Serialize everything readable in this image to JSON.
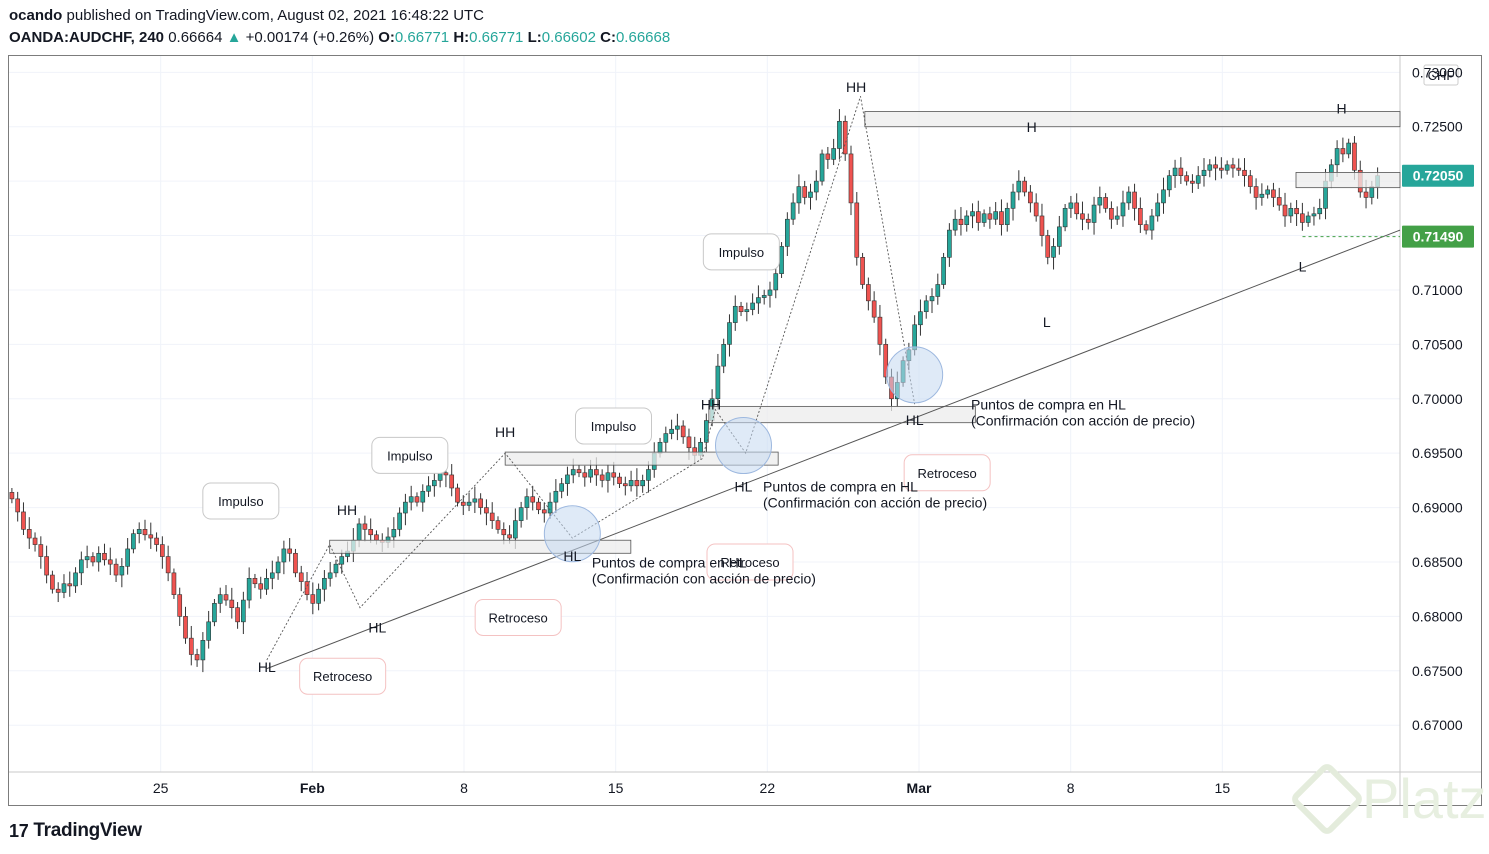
{
  "header": {
    "author": "ocando",
    "published": "published on TradingView.com, August 02, 2021 16:48:22 UTC",
    "symbol": "OANDA:AUDCHF, 240",
    "last": "0.66664",
    "change": "+0.00174 (+0.26%)",
    "o_label": "O:",
    "o": "0.66771",
    "h_label": "H:",
    "h": "0.66771",
    "l_label": "L:",
    "l": "0.66602",
    "c_label": "C:",
    "c": "0.66668"
  },
  "brand": {
    "logo_text": "TradingView",
    "watermark": "Platzi"
  },
  "colors": {
    "up": "#26a69a",
    "down": "#ef5350",
    "price_badge": "#26a69a",
    "level_badge": "#43a047",
    "zone_fill": "#ececec",
    "circle": "#c5d9f1"
  },
  "chart_data": {
    "type": "candlestick",
    "currency_label": "CHF",
    "ylim": [
      0.6657,
      0.7315
    ],
    "y_ticks": [
      "0.73000",
      "0.72500",
      "0.72000",
      "0.71500",
      "0.71000",
      "0.70500",
      "0.70000",
      "0.69500",
      "0.69000",
      "0.68500",
      "0.68000",
      "0.67500",
      "0.67000"
    ],
    "x_ticks": [
      {
        "label": "25",
        "day": -7
      },
      {
        "label": "Feb",
        "day": 0
      },
      {
        "label": "8",
        "day": 7
      },
      {
        "label": "15",
        "day": 14
      },
      {
        "label": "22",
        "day": 21
      },
      {
        "label": "Mar",
        "day": 28
      },
      {
        "label": "8",
        "day": 35
      },
      {
        "label": "15",
        "day": 42
      }
    ],
    "x_range_days": [
      -14,
      50.2
    ],
    "price_badges": [
      {
        "value": "0.72050",
        "kind": "price"
      },
      {
        "value": "0.71490",
        "kind": "level"
      }
    ],
    "closes": [
      0.6908,
      0.6896,
      0.688,
      0.6872,
      0.6866,
      0.6855,
      0.6838,
      0.6825,
      0.6822,
      0.683,
      0.6828,
      0.684,
      0.6852,
      0.6855,
      0.685,
      0.6858,
      0.6852,
      0.6848,
      0.6838,
      0.6846,
      0.6862,
      0.6876,
      0.688,
      0.6875,
      0.6872,
      0.6866,
      0.6855,
      0.684,
      0.682,
      0.68,
      0.678,
      0.6765,
      0.676,
      0.6778,
      0.6795,
      0.6812,
      0.682,
      0.6815,
      0.6808,
      0.6795,
      0.6815,
      0.6835,
      0.683,
      0.6825,
      0.6835,
      0.684,
      0.685,
      0.6862,
      0.6858,
      0.684,
      0.6832,
      0.682,
      0.6812,
      0.6825,
      0.6835,
      0.684,
      0.6848,
      0.6855,
      0.686,
      0.687,
      0.6885,
      0.688,
      0.6875,
      0.687,
      0.6868,
      0.6873,
      0.688,
      0.6895,
      0.6905,
      0.691,
      0.6905,
      0.6915,
      0.692,
      0.6925,
      0.6932,
      0.693,
      0.6918,
      0.6905,
      0.6902,
      0.6905,
      0.6908,
      0.69,
      0.6895,
      0.6888,
      0.688,
      0.6875,
      0.6872,
      0.6888,
      0.69,
      0.691,
      0.6905,
      0.6898,
      0.6895,
      0.6905,
      0.6915,
      0.6922,
      0.693,
      0.6935,
      0.6932,
      0.6928,
      0.6935,
      0.693,
      0.6925,
      0.6932,
      0.6928,
      0.6922,
      0.692,
      0.6925,
      0.692,
      0.6925,
      0.6935,
      0.695,
      0.696,
      0.6968,
      0.6972,
      0.6975,
      0.6965,
      0.6955,
      0.6948,
      0.696,
      0.698,
      0.7,
      0.703,
      0.705,
      0.707,
      0.7085,
      0.708,
      0.7082,
      0.7088,
      0.7093,
      0.7095,
      0.71,
      0.7115,
      0.714,
      0.7165,
      0.718,
      0.7195,
      0.7185,
      0.719,
      0.72,
      0.7225,
      0.722,
      0.723,
      0.7255,
      0.7225,
      0.718,
      0.713,
      0.7105,
      0.709,
      0.7075,
      0.705,
      0.702,
      0.7,
      0.7015,
      0.7035,
      0.7045,
      0.7068,
      0.708,
      0.709,
      0.7094,
      0.7105,
      0.713,
      0.7155,
      0.7165,
      0.716,
      0.7168,
      0.7172,
      0.7162,
      0.717,
      0.7165,
      0.7172,
      0.716,
      0.7175,
      0.719,
      0.72,
      0.719,
      0.718,
      0.7168,
      0.715,
      0.713,
      0.714,
      0.7158,
      0.7175,
      0.718,
      0.717,
      0.7165,
      0.7162,
      0.7178,
      0.7185,
      0.7175,
      0.7165,
      0.7168,
      0.718,
      0.719,
      0.7175,
      0.716,
      0.7155,
      0.7168,
      0.718,
      0.7192,
      0.7205,
      0.7212,
      0.7205,
      0.72,
      0.7198,
      0.7205,
      0.721,
      0.7215,
      0.7212,
      0.721,
      0.7215,
      0.7212,
      0.721,
      0.7205,
      0.7195,
      0.7185,
      0.7188,
      0.7192,
      0.7185,
      0.7178,
      0.7168,
      0.7175,
      0.717,
      0.7162,
      0.7168,
      0.717,
      0.7175,
      0.72,
      0.7215,
      0.723,
      0.7225,
      0.7235,
      0.721,
      0.719,
      0.7185,
      0.7195,
      0.7205
    ],
    "annotations": [
      {
        "text": "HH",
        "kind": "label",
        "day": 1.6,
        "price": 0.6893
      },
      {
        "text": "HL",
        "kind": "label",
        "day": -2.1,
        "price": 0.6749
      },
      {
        "text": "HL",
        "kind": "label",
        "day": 3.0,
        "price": 0.6785
      },
      {
        "text": "HH",
        "kind": "label",
        "day": 8.9,
        "price": 0.6965
      },
      {
        "text": "HL",
        "kind": "label",
        "day": 12.0,
        "price": 0.6851
      },
      {
        "text": "HH",
        "kind": "label",
        "day": 18.4,
        "price": 0.699
      },
      {
        "text": "HL",
        "kind": "label",
        "day": 19.9,
        "price": 0.6915
      },
      {
        "text": "HH",
        "kind": "label",
        "day": 25.1,
        "price": 0.7282
      },
      {
        "text": "HL",
        "kind": "label",
        "day": 27.8,
        "price": 0.6976
      },
      {
        "text": "H",
        "kind": "label",
        "day": 33.2,
        "price": 0.7245
      },
      {
        "text": "L",
        "kind": "label",
        "day": 33.9,
        "price": 0.7066
      },
      {
        "text": "H",
        "kind": "label",
        "day": 47.5,
        "price": 0.7262
      },
      {
        "text": "L",
        "kind": "label",
        "day": 45.7,
        "price": 0.7117
      }
    ],
    "callouts": [
      {
        "text": "Impulso",
        "day": -3.3,
        "price": 0.6906
      },
      {
        "text": "Impulso",
        "day": 4.5,
        "price": 0.6948
      },
      {
        "text": "Impulso",
        "day": 13.9,
        "price": 0.6975
      },
      {
        "text": "Impulso",
        "day": 19.8,
        "price": 0.7135
      },
      {
        "text": "Retroceso",
        "day": 1.4,
        "price": 0.6745
      },
      {
        "text": "Retroceso",
        "day": 9.5,
        "price": 0.6799
      },
      {
        "text": "Retroceso",
        "day": 20.2,
        "price": 0.685
      },
      {
        "text": "Retroceso",
        "day": 29.3,
        "price": 0.6932
      }
    ],
    "notes": [
      {
        "lines": [
          "Puntos de compra en HL",
          "(Confirmación con acción de precio)"
        ],
        "day": 12.9,
        "price": 0.6845
      },
      {
        "lines": [
          "Puntos de compra en HL",
          "(Confirmación con acción de precio)"
        ],
        "day": 20.8,
        "price": 0.6915
      },
      {
        "lines": [
          "Puntos de compra en HL",
          "(Confirmación con acción de precio)"
        ],
        "day": 30.4,
        "price": 0.699
      }
    ]
  }
}
